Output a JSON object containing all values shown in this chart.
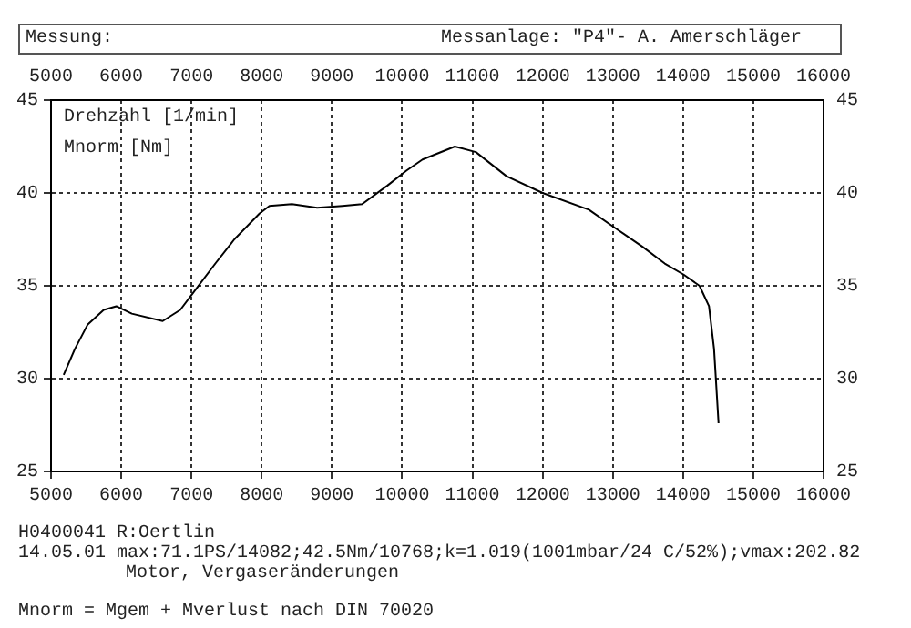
{
  "chart_data": {
    "type": "line",
    "title": "Messung:",
    "subtitle": "Messanlage: \"P4\"- A. Amerschläger",
    "xlabel": "Drehzahl [1/min]",
    "ylabel": "Mnorm [Nm]",
    "x": [
      5180,
      5340,
      5520,
      5750,
      5930,
      6150,
      6590,
      6840,
      7020,
      7340,
      7610,
      7970,
      8110,
      8430,
      8790,
      9150,
      9430,
      9790,
      10060,
      10290,
      10750,
      11050,
      11486,
      12000,
      12658,
      13000,
      13423,
      13739,
      14009,
      14234,
      14369,
      14441,
      14505
    ],
    "series": [
      {
        "color": "#000000",
        "values": [
          30.2,
          31.6,
          32.9,
          33.7,
          33.9,
          33.5,
          33.1,
          33.7,
          34.6,
          36.2,
          37.5,
          38.9,
          39.3,
          39.4,
          39.2,
          39.3,
          39.4,
          40.4,
          41.2,
          41.8,
          42.5,
          42.2,
          40.9,
          40.0,
          39.1,
          38.2,
          37.1,
          36.2,
          35.6,
          35.0,
          33.9,
          31.6,
          27.6
        ]
      }
    ],
    "xlim": [
      5000,
      16000
    ],
    "xticks": [
      5000,
      6000,
      7000,
      8000,
      9000,
      10000,
      11000,
      12000,
      13000,
      14000,
      15000,
      16000
    ],
    "x2lim": [
      5000,
      16000
    ],
    "x2ticks": [
      5000,
      6000,
      7000,
      8000,
      9000,
      10000,
      11000,
      12000,
      13000,
      14000,
      15000,
      16000
    ],
    "ylim": [
      25,
      45
    ],
    "yticks": [
      25,
      30,
      35,
      40,
      45
    ],
    "y2lim": [
      25,
      45
    ],
    "y2ticks": [
      25,
      30,
      35,
      40,
      45
    ],
    "grid": true,
    "legend": false,
    "marker": "none",
    "line_style": "solid",
    "annotations": [
      "H0400041 R:Oertlin",
      "14.05.01 max:71.1PS/14082;42.5Nm/10768;k=1.019(1001mbar/24 C/52%);vmax:202.82",
      "Motor, Vergaseränderungen",
      "Mnorm = Mgem + Mverlust nach DIN 70020"
    ]
  }
}
